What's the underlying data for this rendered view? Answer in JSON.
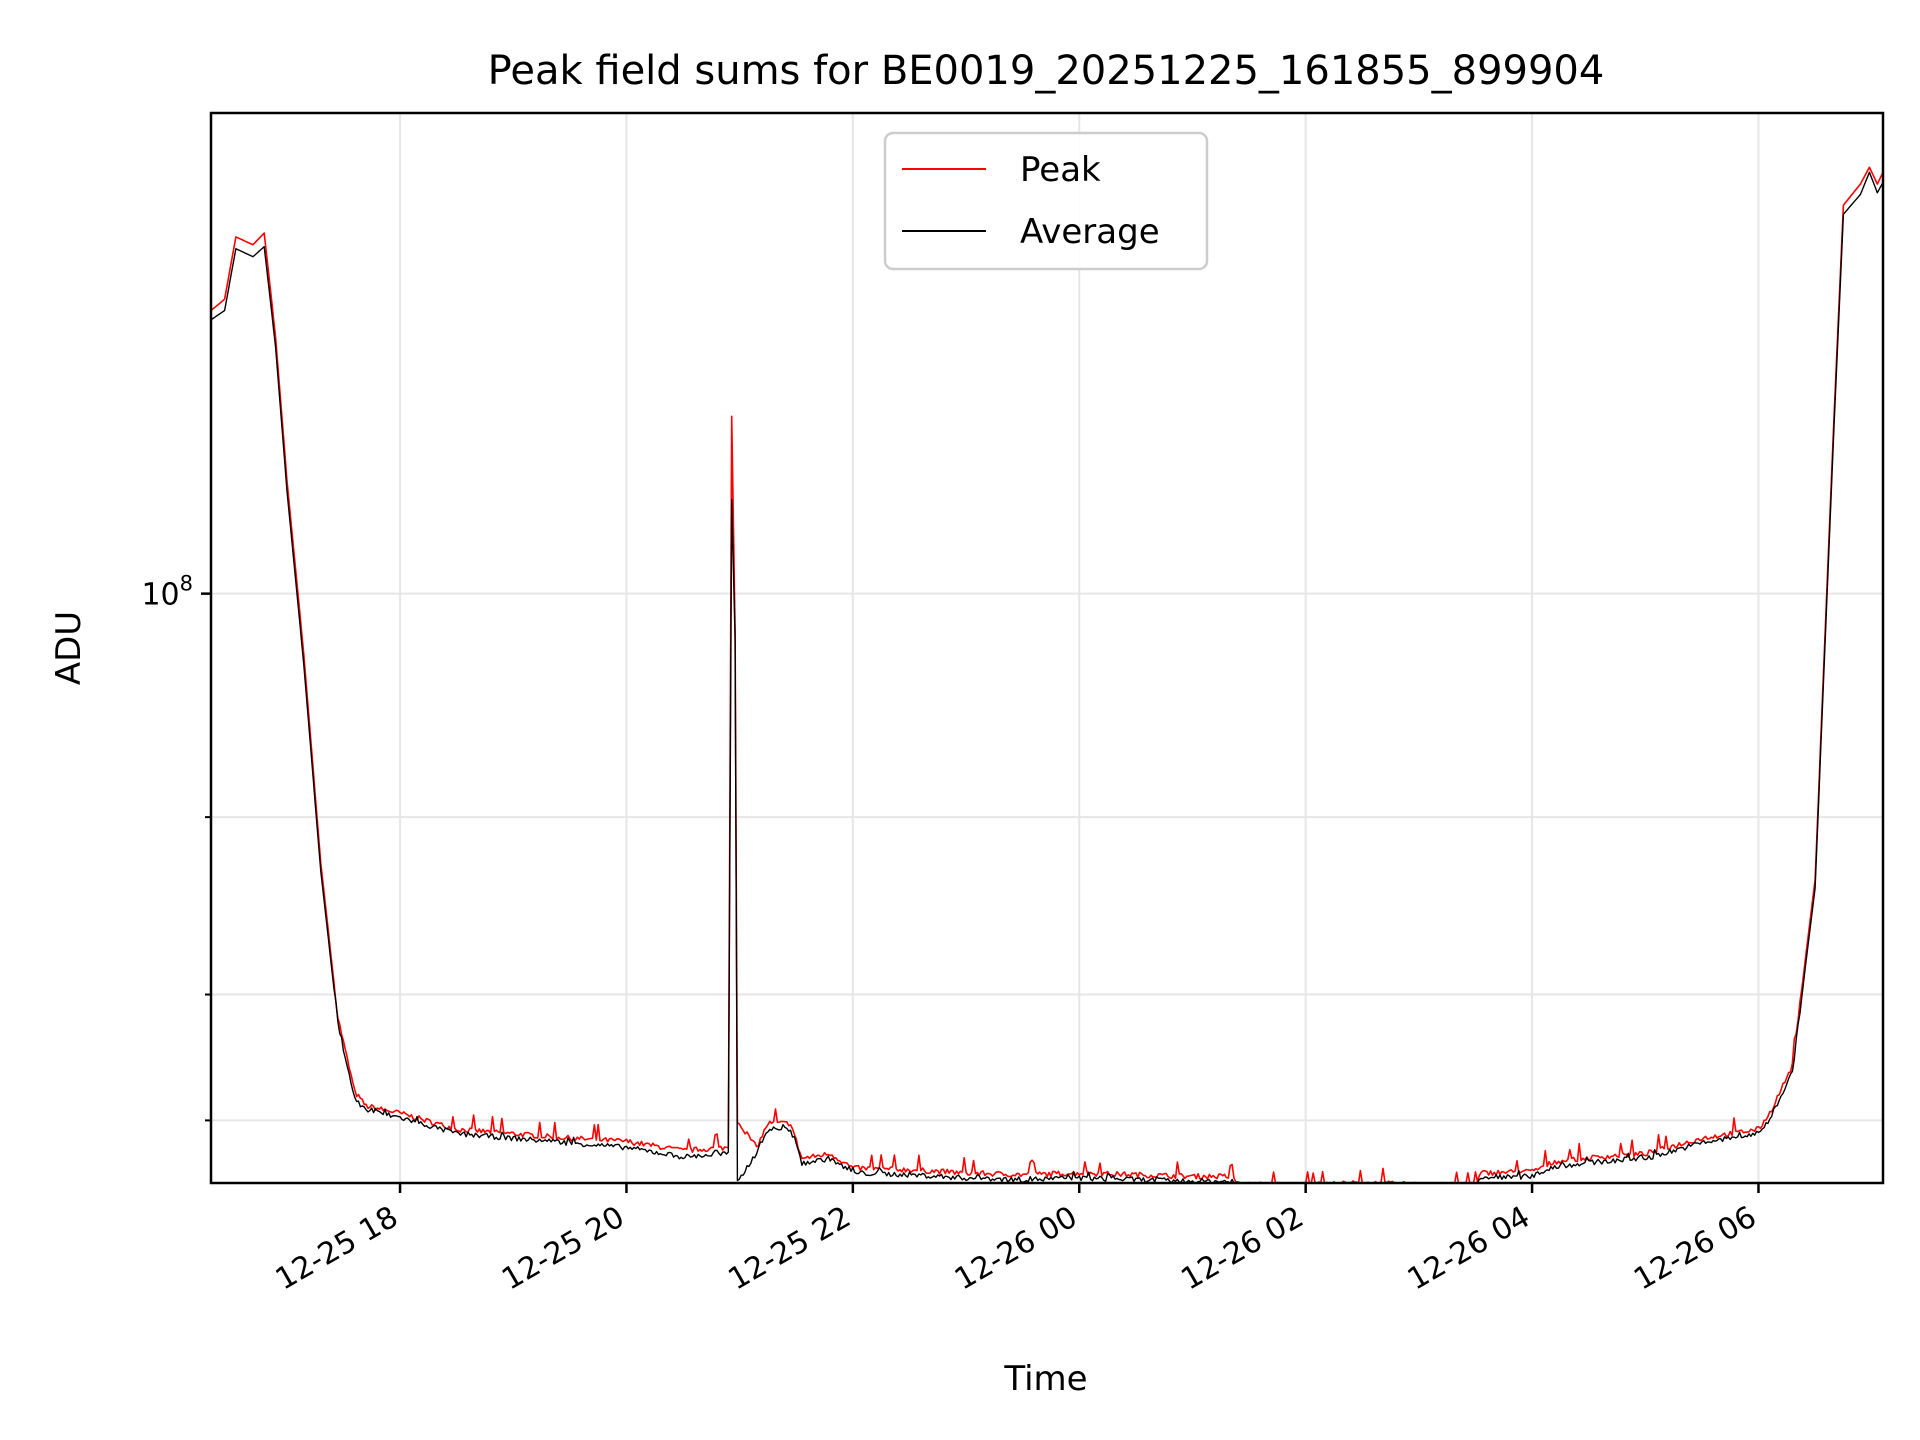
{
  "chart_data": {
    "type": "line",
    "title": "Peak field sums for BE0019_20251225_161855_899904",
    "xlabel": "Time",
    "ylabel": "ADU",
    "y_scale": "log",
    "xlim_hours": [
      16.33,
      31.1
    ],
    "ylim": [
      26000000,
      300000000
    ],
    "x_ticks": [
      {
        "hours": 18,
        "label": "12-25 18"
      },
      {
        "hours": 20,
        "label": "12-25 20"
      },
      {
        "hours": 22,
        "label": "12-25 22"
      },
      {
        "hours": 24,
        "label": "12-26 00"
      },
      {
        "hours": 26,
        "label": "12-26 02"
      },
      {
        "hours": 28,
        "label": "12-26 04"
      },
      {
        "hours": 30,
        "label": "12-26 06"
      }
    ],
    "y_major_tick": {
      "value": 100000000,
      "base": "10",
      "exponent": "8"
    },
    "y_minor_ticks": [
      30000000,
      40000000,
      60000000
    ],
    "legend": {
      "placement": "upper center",
      "entries": [
        "Peak",
        "Average"
      ]
    },
    "series": [
      {
        "name": "Peak",
        "color": "#ff0000",
        "points": [
          [
            16.33,
            191000000
          ],
          [
            16.45,
            196000000
          ],
          [
            16.55,
            226000000
          ],
          [
            16.7,
            222000000
          ],
          [
            16.8,
            228000000
          ],
          [
            16.9,
            180000000
          ],
          [
            17.0,
            130000000
          ],
          [
            17.15,
            87000000
          ],
          [
            17.3,
            54000000
          ],
          [
            17.45,
            38000000
          ],
          [
            17.6,
            32000000
          ],
          [
            17.7,
            31000000
          ],
          [
            18.0,
            30500000
          ],
          [
            18.5,
            29400000
          ],
          [
            19.0,
            29100000
          ],
          [
            19.5,
            28800000
          ],
          [
            20.0,
            28600000
          ],
          [
            20.5,
            28000000
          ],
          [
            20.9,
            28200000
          ],
          [
            20.93,
            150000000
          ],
          [
            20.96,
            92000000
          ],
          [
            20.98,
            30000000
          ],
          [
            21.15,
            28200000
          ],
          [
            21.25,
            29800000
          ],
          [
            21.45,
            29800000
          ],
          [
            21.55,
            27500000
          ],
          [
            21.8,
            27800000
          ],
          [
            22.0,
            26900000
          ],
          [
            22.5,
            26800000
          ],
          [
            23.0,
            26600000
          ],
          [
            23.5,
            26500000
          ],
          [
            24.0,
            26600000
          ],
          [
            24.5,
            26500000
          ],
          [
            25.0,
            26400000
          ],
          [
            25.3,
            26400000
          ],
          [
            25.45,
            25900000
          ],
          [
            26.0,
            25900000
          ],
          [
            26.5,
            26000000
          ],
          [
            27.0,
            25900000
          ],
          [
            27.5,
            25800000
          ],
          [
            27.55,
            26600000
          ],
          [
            28.0,
            26700000
          ],
          [
            28.2,
            27300000
          ],
          [
            28.6,
            27600000
          ],
          [
            29.0,
            27800000
          ],
          [
            29.5,
            28800000
          ],
          [
            30.0,
            29400000
          ],
          [
            30.1,
            30500000
          ],
          [
            30.3,
            34000000
          ],
          [
            30.5,
            52000000
          ],
          [
            30.65,
            135000000
          ],
          [
            30.75,
            243000000
          ],
          [
            30.9,
            255000000
          ],
          [
            30.98,
            265000000
          ],
          [
            31.05,
            255000000
          ],
          [
            31.1,
            262000000
          ]
        ]
      },
      {
        "name": "Average",
        "color": "#000000",
        "points": [
          [
            16.33,
            187000000
          ],
          [
            16.45,
            191000000
          ],
          [
            16.55,
            220000000
          ],
          [
            16.7,
            216000000
          ],
          [
            16.8,
            221000000
          ],
          [
            16.9,
            176000000
          ],
          [
            17.0,
            127000000
          ],
          [
            17.15,
            85000000
          ],
          [
            17.3,
            53000000
          ],
          [
            17.45,
            37500000
          ],
          [
            17.6,
            31500000
          ],
          [
            17.7,
            30700000
          ],
          [
            18.0,
            30200000
          ],
          [
            18.5,
            29100000
          ],
          [
            19.0,
            28800000
          ],
          [
            19.5,
            28500000
          ],
          [
            20.0,
            28200000
          ],
          [
            20.5,
            27600000
          ],
          [
            20.9,
            27800000
          ],
          [
            20.93,
            124000000
          ],
          [
            20.96,
            90000000
          ],
          [
            20.98,
            26000000
          ],
          [
            21.15,
            27900000
          ],
          [
            21.25,
            29400000
          ],
          [
            21.45,
            29400000
          ],
          [
            21.55,
            27200000
          ],
          [
            21.8,
            27500000
          ],
          [
            22.0,
            26600000
          ],
          [
            22.5,
            26500000
          ],
          [
            23.0,
            26300000
          ],
          [
            23.5,
            26200000
          ],
          [
            24.0,
            26300000
          ],
          [
            24.5,
            26200000
          ],
          [
            25.0,
            26100000
          ],
          [
            25.3,
            26100000
          ],
          [
            25.45,
            25700000
          ],
          [
            26.0,
            25700000
          ],
          [
            26.5,
            25700000
          ],
          [
            27.0,
            25600000
          ],
          [
            27.5,
            25600000
          ],
          [
            27.55,
            26300000
          ],
          [
            28.0,
            26400000
          ],
          [
            28.2,
            27000000
          ],
          [
            28.6,
            27300000
          ],
          [
            29.0,
            27500000
          ],
          [
            29.5,
            28500000
          ],
          [
            30.0,
            29100000
          ],
          [
            30.1,
            30100000
          ],
          [
            30.3,
            33500000
          ],
          [
            30.5,
            51000000
          ],
          [
            30.65,
            132000000
          ],
          [
            30.75,
            238000000
          ],
          [
            30.9,
            249000000
          ],
          [
            30.98,
            262000000
          ],
          [
            31.05,
            250000000
          ],
          [
            31.1,
            256000000
          ]
        ]
      }
    ]
  }
}
